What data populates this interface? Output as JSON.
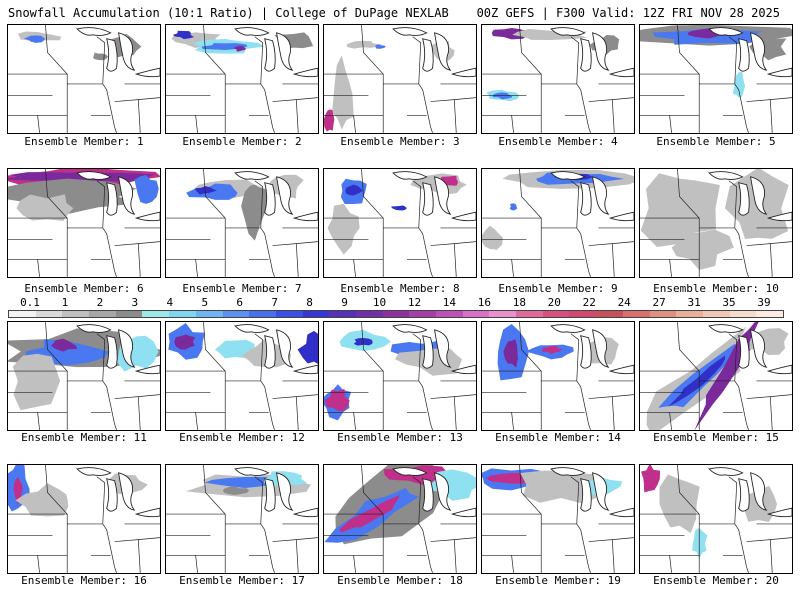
{
  "header": {
    "left": "Snowfall Accumulation (10:1 Ratio) | College of DuPage NEXLAB",
    "right": "00Z GEFS | F300 Valid: 12Z FRI NOV 28 2025"
  },
  "members": [
    {
      "label": "Ensemble Member: 1"
    },
    {
      "label": "Ensemble Member: 2"
    },
    {
      "label": "Ensemble Member: 3"
    },
    {
      "label": "Ensemble Member: 4"
    },
    {
      "label": "Ensemble Member: 5"
    },
    {
      "label": "Ensemble Member: 6"
    },
    {
      "label": "Ensemble Member: 7"
    },
    {
      "label": "Ensemble Member: 8"
    },
    {
      "label": "Ensemble Member: 9"
    },
    {
      "label": "Ensemble Member: 10"
    },
    {
      "label": "Ensemble Member: 11"
    },
    {
      "label": "Ensemble Member: 12"
    },
    {
      "label": "Ensemble Member: 13"
    },
    {
      "label": "Ensemble Member: 14"
    },
    {
      "label": "Ensemble Member: 15"
    },
    {
      "label": "Ensemble Member: 16"
    },
    {
      "label": "Ensemble Member: 17"
    },
    {
      "label": "Ensemble Member: 18"
    },
    {
      "label": "Ensemble Member: 19"
    },
    {
      "label": "Ensemble Member: 20"
    }
  ],
  "colorbar": {
    "ticks": [
      "0.1",
      "1",
      "2",
      "3",
      "4",
      "5",
      "6",
      "7",
      "8",
      "9",
      "10",
      "12",
      "14",
      "16",
      "18",
      "20",
      "22",
      "24",
      "27",
      "31",
      "35",
      "39"
    ],
    "colors": [
      "#f2f2f2",
      "#d9d9d9",
      "#bfbfbf",
      "#a6a6a6",
      "#8c8c8c",
      "#9ee8e8",
      "#7fd6f0",
      "#6fb4f5",
      "#5a90f0",
      "#4a6ef0",
      "#3a4ee8",
      "#3535d8",
      "#5530b8",
      "#7030a8",
      "#8c2f9f",
      "#a43ea8",
      "#c050b8",
      "#d870c8",
      "#e890d0",
      "#e06a9a",
      "#d85080",
      "#d2486e",
      "#c8505a",
      "#d87070",
      "#e09080",
      "#e8b09a",
      "#f0c8b4",
      "#f6dccc",
      "#faece2"
    ]
  },
  "legend_colors": {
    "light": "#c0c0c0",
    "mid": "#8c8c8c",
    "cyan": "#8fe0f0",
    "blue": "#4a78f0",
    "navy": "#3030c8",
    "purple": "#7a2a9a",
    "magenta": "#c0308a",
    "pink": "#e86aa8"
  }
}
